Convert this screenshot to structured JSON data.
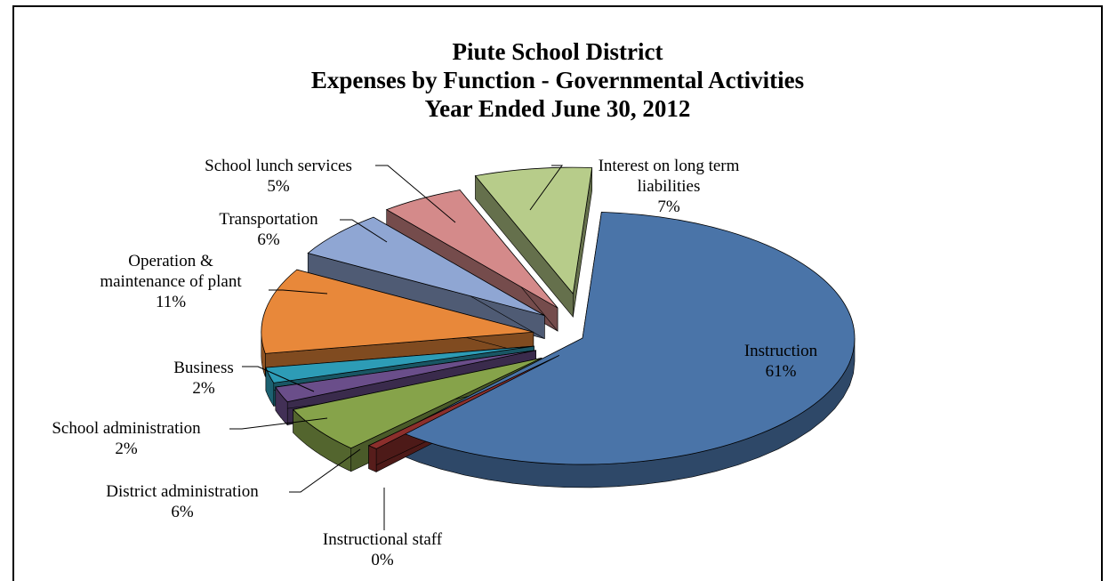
{
  "chart_data": {
    "type": "pie",
    "title_lines": [
      "Piute School District",
      "Expenses by Function - Governmental Activities",
      "Year Ended June 30, 2012"
    ],
    "slices": [
      {
        "key": "instruction",
        "lines": [
          "Instruction",
          "61%"
        ],
        "value": 61,
        "color": "#4a74a8"
      },
      {
        "key": "instructional-staff",
        "lines": [
          "Instructional staff",
          "0%"
        ],
        "value": 0,
        "color": "#8c2f2c"
      },
      {
        "key": "district-administration",
        "lines": [
          "District administration",
          "6%"
        ],
        "value": 6,
        "color": "#86a34a"
      },
      {
        "key": "school-administration",
        "lines": [
          "School administration",
          "2%"
        ],
        "value": 2,
        "color": "#6a4e8a"
      },
      {
        "key": "business",
        "lines": [
          "Business",
          "2%"
        ],
        "value": 2,
        "color": "#2d9cb6"
      },
      {
        "key": "operation-maintenance",
        "lines": [
          "Operation &",
          "maintenance of plant",
          "11%"
        ],
        "value": 11,
        "color": "#e8883a"
      },
      {
        "key": "transportation",
        "lines": [
          "Transportation",
          "6%"
        ],
        "value": 6,
        "color": "#8fa6d3"
      },
      {
        "key": "school-lunch",
        "lines": [
          "School lunch services",
          "5%"
        ],
        "value": 5,
        "color": "#d48a8a"
      },
      {
        "key": "interest",
        "lines": [
          "Interest on long term",
          "liabilities",
          "7%"
        ],
        "value": 7,
        "color": "#b7cc8a"
      }
    ]
  }
}
